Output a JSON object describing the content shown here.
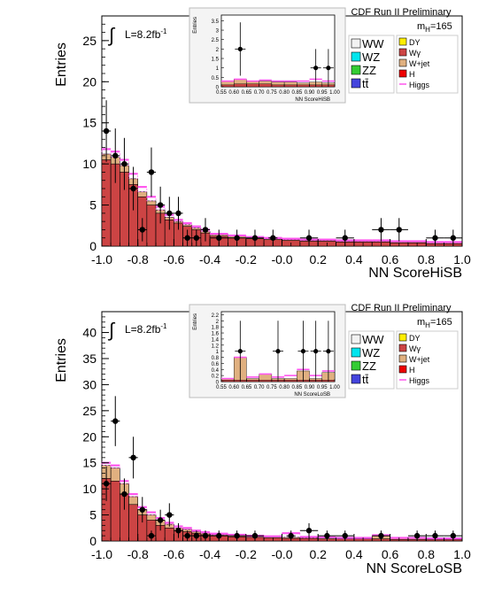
{
  "colors": {
    "WW": "#f2f2f2",
    "WZ": "#00e5ee",
    "ZZ": "#33cc33",
    "ttbar": "#4444dd",
    "DY": "#ffee00",
    "Wg": "#cc4444",
    "Wjet": "#e0b080",
    "H": "#ee0000",
    "Higgs": "#ff55ee",
    "data": "#000000",
    "frame": "#000000"
  },
  "chart_data": [
    {
      "type": "histogram",
      "title": "CDF Run II Preliminary",
      "xlabel": "NN ScoreHiSB",
      "ylabel": "Entries",
      "xlim": [
        -1.0,
        1.0
      ],
      "ylim": [
        0,
        28
      ],
      "xticks": [
        "-1.0",
        "-0.8",
        "-0.6",
        "-0.4",
        "-0.2",
        "-0.0",
        "0.2",
        "0.4",
        "0.6",
        "0.8",
        "1.0"
      ],
      "yticks": [
        "0",
        "5",
        "10",
        "15",
        "20",
        "25"
      ],
      "lumi_label": "L=8.2fb",
      "lumi_sup": "-1",
      "mass_label": "m",
      "mass_sub": "H",
      "mass_value": "=165",
      "legend_left": [
        "WW",
        "WZ",
        "ZZ",
        "tt̄"
      ],
      "legend_right": [
        "DY",
        "Wγ",
        "W+jet",
        "H",
        "Higgs"
      ],
      "bins_low": [
        -1.0,
        -0.95,
        -0.9,
        -0.85,
        -0.8,
        -0.75,
        -0.7,
        -0.65,
        -0.6,
        -0.55,
        -0.5,
        -0.45,
        -0.4,
        -0.3,
        -0.2,
        -0.1,
        0.0,
        0.1,
        0.2,
        0.3,
        0.4,
        0.5,
        0.6,
        0.7,
        0.8,
        0.9
      ],
      "bins_high": [
        -0.95,
        -0.9,
        -0.85,
        -0.8,
        -0.75,
        -0.7,
        -0.65,
        -0.6,
        -0.55,
        -0.5,
        -0.45,
        -0.4,
        -0.3,
        -0.2,
        -0.1,
        0.0,
        0.1,
        0.2,
        0.3,
        0.4,
        0.5,
        0.6,
        0.7,
        0.8,
        0.9,
        1.0
      ],
      "background_wg": [
        10.5,
        10.0,
        9.0,
        7.5,
        6.0,
        5.0,
        4.0,
        3.2,
        2.8,
        2.4,
        2.0,
        1.6,
        1.2,
        1.0,
        0.9,
        0.8,
        0.7,
        0.6,
        0.6,
        0.5,
        0.5,
        0.5,
        0.4,
        0.4,
        0.3,
        0.3
      ],
      "background_total": [
        11.2,
        10.8,
        9.8,
        8.2,
        6.6,
        5.5,
        4.4,
        3.5,
        3.0,
        2.6,
        2.2,
        1.8,
        1.4,
        1.2,
        1.0,
        0.9,
        0.8,
        0.7,
        0.7,
        0.6,
        0.6,
        0.6,
        0.5,
        0.5,
        0.4,
        0.4
      ],
      "signal_total": [
        11.8,
        11.5,
        10.5,
        8.8,
        7.2,
        6.0,
        4.8,
        3.8,
        3.2,
        2.8,
        2.4,
        2.0,
        1.5,
        1.3,
        1.1,
        1.0,
        0.9,
        0.8,
        0.8,
        0.7,
        0.7,
        0.7,
        0.6,
        0.6,
        0.5,
        0.5
      ],
      "data_x": [
        -0.975,
        -0.925,
        -0.875,
        -0.825,
        -0.775,
        -0.725,
        -0.675,
        -0.625,
        -0.575,
        -0.525,
        -0.475,
        -0.425,
        -0.35,
        -0.25,
        -0.15,
        -0.05,
        0.05,
        0.15,
        0.25,
        0.35,
        0.45,
        0.55,
        0.65,
        0.75,
        0.85,
        0.95
      ],
      "data_y": [
        14,
        11,
        10,
        7,
        2,
        9,
        5,
        4,
        4,
        1,
        1,
        2,
        1,
        1,
        1,
        1,
        0,
        1,
        0,
        1,
        0,
        2,
        2,
        0,
        1,
        1
      ],
      "inset": {
        "xlabel": "NN ScoreHiSB",
        "ylabel": "Entries",
        "xlim": [
          0.55,
          1.0
        ],
        "ylim": [
          0,
          3.8
        ],
        "xticks": [
          "0.55",
          "0.60",
          "0.65",
          "0.70",
          "0.75",
          "0.80",
          "0.85",
          "0.90",
          "0.95",
          "1.00"
        ],
        "yticks": [
          "0",
          "0.5",
          "1",
          "1.5",
          "2",
          "2.5",
          "3",
          "3.5"
        ],
        "bins_low": [
          0.55,
          0.6,
          0.65,
          0.7,
          0.75,
          0.8,
          0.85,
          0.9,
          0.95
        ],
        "bins_high": [
          0.6,
          0.65,
          0.7,
          0.75,
          0.8,
          0.85,
          0.9,
          0.95,
          1.0
        ],
        "background_wg": [
          0.1,
          0.15,
          0.15,
          0.15,
          0.1,
          0.1,
          0.1,
          0.1,
          0.1
        ],
        "background_total": [
          0.3,
          0.4,
          0.3,
          0.3,
          0.25,
          0.25,
          0.2,
          0.25,
          0.2
        ],
        "signal_total": [
          0.3,
          0.4,
          0.3,
          0.35,
          0.3,
          0.3,
          0.3,
          0.4,
          0.3
        ],
        "data_x": [
          0.625,
          0.925,
          0.975
        ],
        "data_y": [
          2,
          1,
          1
        ]
      }
    },
    {
      "type": "histogram",
      "title": "CDF Run II Preliminary",
      "xlabel": "NN ScoreLoSB",
      "ylabel": "Entries",
      "xlim": [
        -1.0,
        1.0
      ],
      "ylim": [
        0,
        44
      ],
      "xticks": [
        "-1.0",
        "-0.8",
        "-0.6",
        "-0.4",
        "-0.2",
        "-0.0",
        "0.2",
        "0.4",
        "0.6",
        "0.8",
        "1.0"
      ],
      "yticks": [
        "0",
        "5",
        "10",
        "15",
        "20",
        "25",
        "30",
        "35",
        "40"
      ],
      "lumi_label": "L=8.2fb",
      "lumi_sup": "-1",
      "mass_label": "m",
      "mass_sub": "H",
      "mass_value": "=165",
      "legend_left": [
        "WW",
        "WZ",
        "ZZ",
        "tt̄"
      ],
      "legend_right": [
        "DY",
        "Wγ",
        "W+jet",
        "H",
        "Higgs"
      ],
      "bins_low": [
        -1.0,
        -0.95,
        -0.9,
        -0.85,
        -0.8,
        -0.75,
        -0.7,
        -0.65,
        -0.6,
        -0.55,
        -0.5,
        -0.45,
        -0.4,
        -0.3,
        -0.2,
        -0.1,
        0.0,
        0.1,
        0.2,
        0.3,
        0.4,
        0.5,
        0.6,
        0.7,
        0.8,
        0.9
      ],
      "bins_high": [
        -0.95,
        -0.9,
        -0.85,
        -0.8,
        -0.75,
        -0.7,
        -0.65,
        -0.6,
        -0.55,
        -0.5,
        -0.45,
        -0.4,
        -0.3,
        -0.2,
        -0.1,
        0.0,
        0.1,
        0.2,
        0.3,
        0.4,
        0.5,
        0.6,
        0.7,
        0.8,
        0.9,
        1.0
      ],
      "background_wg": [
        12.0,
        11.5,
        9.0,
        7.0,
        5.0,
        4.0,
        3.0,
        2.5,
        2.0,
        1.8,
        1.5,
        1.2,
        1.0,
        0.8,
        0.7,
        0.6,
        0.5,
        0.5,
        0.4,
        0.4,
        0.4,
        0.4,
        0.3,
        0.3,
        0.3,
        0.3
      ],
      "background_total": [
        14.5,
        14.0,
        11.0,
        8.5,
        6.0,
        5.0,
        4.0,
        3.2,
        2.5,
        2.2,
        1.8,
        1.5,
        1.2,
        1.0,
        0.9,
        0.8,
        0.7,
        0.6,
        0.6,
        0.5,
        0.5,
        1.0,
        0.5,
        0.5,
        0.4,
        0.4
      ],
      "signal_total": [
        15.0,
        14.5,
        11.5,
        9.0,
        6.5,
        5.5,
        4.4,
        3.5,
        2.8,
        2.5,
        2.0,
        1.7,
        1.4,
        1.2,
        1.0,
        0.9,
        1.5,
        0.8,
        0.7,
        0.6,
        0.6,
        1.1,
        0.6,
        0.6,
        0.5,
        0.5
      ],
      "data_x": [
        -0.975,
        -0.925,
        -0.875,
        -0.825,
        -0.775,
        -0.725,
        -0.675,
        -0.625,
        -0.575,
        -0.525,
        -0.475,
        -0.425,
        -0.35,
        -0.25,
        -0.15,
        -0.05,
        0.05,
        0.15,
        0.25,
        0.35,
        0.45,
        0.55,
        0.65,
        0.75,
        0.85,
        0.95
      ],
      "data_y": [
        11,
        23,
        9,
        16,
        6,
        1,
        4,
        5,
        2,
        1,
        1,
        1,
        1,
        1,
        1,
        0,
        1,
        2,
        1,
        1,
        0,
        1,
        0,
        1,
        1,
        1
      ],
      "inset": {
        "xlabel": "NN ScoreLoSB",
        "ylabel": "Entries",
        "xlim": [
          0.55,
          1.0
        ],
        "ylim": [
          0,
          2.3
        ],
        "xticks": [
          "0.55",
          "0.60",
          "0.65",
          "0.70",
          "0.75",
          "0.80",
          "0.85",
          "0.90",
          "0.95",
          "1.00"
        ],
        "yticks": [
          "0",
          "0.2",
          "0.4",
          "0.6",
          "0.8",
          "1",
          "1.2",
          "1.4",
          "1.6",
          "1.8",
          "2",
          "2.2"
        ],
        "bins_low": [
          0.55,
          0.6,
          0.65,
          0.7,
          0.75,
          0.8,
          0.85,
          0.9,
          0.95
        ],
        "bins_high": [
          0.6,
          0.65,
          0.7,
          0.75,
          0.8,
          0.85,
          0.9,
          0.95,
          1.0
        ],
        "background_wg": [
          0.05,
          0.05,
          0.05,
          0.05,
          0.05,
          0.05,
          0.05,
          0.05,
          0.05
        ],
        "background_total": [
          0.1,
          0.8,
          0.1,
          0.25,
          0.1,
          0.1,
          0.35,
          0.1,
          0.3
        ],
        "signal_total": [
          0.1,
          0.8,
          0.15,
          0.25,
          0.15,
          0.2,
          0.4,
          0.2,
          0.35
        ],
        "data_x": [
          0.625,
          0.775,
          0.875,
          0.925,
          0.975
        ],
        "data_y": [
          1,
          1,
          1,
          1,
          1
        ]
      }
    }
  ]
}
